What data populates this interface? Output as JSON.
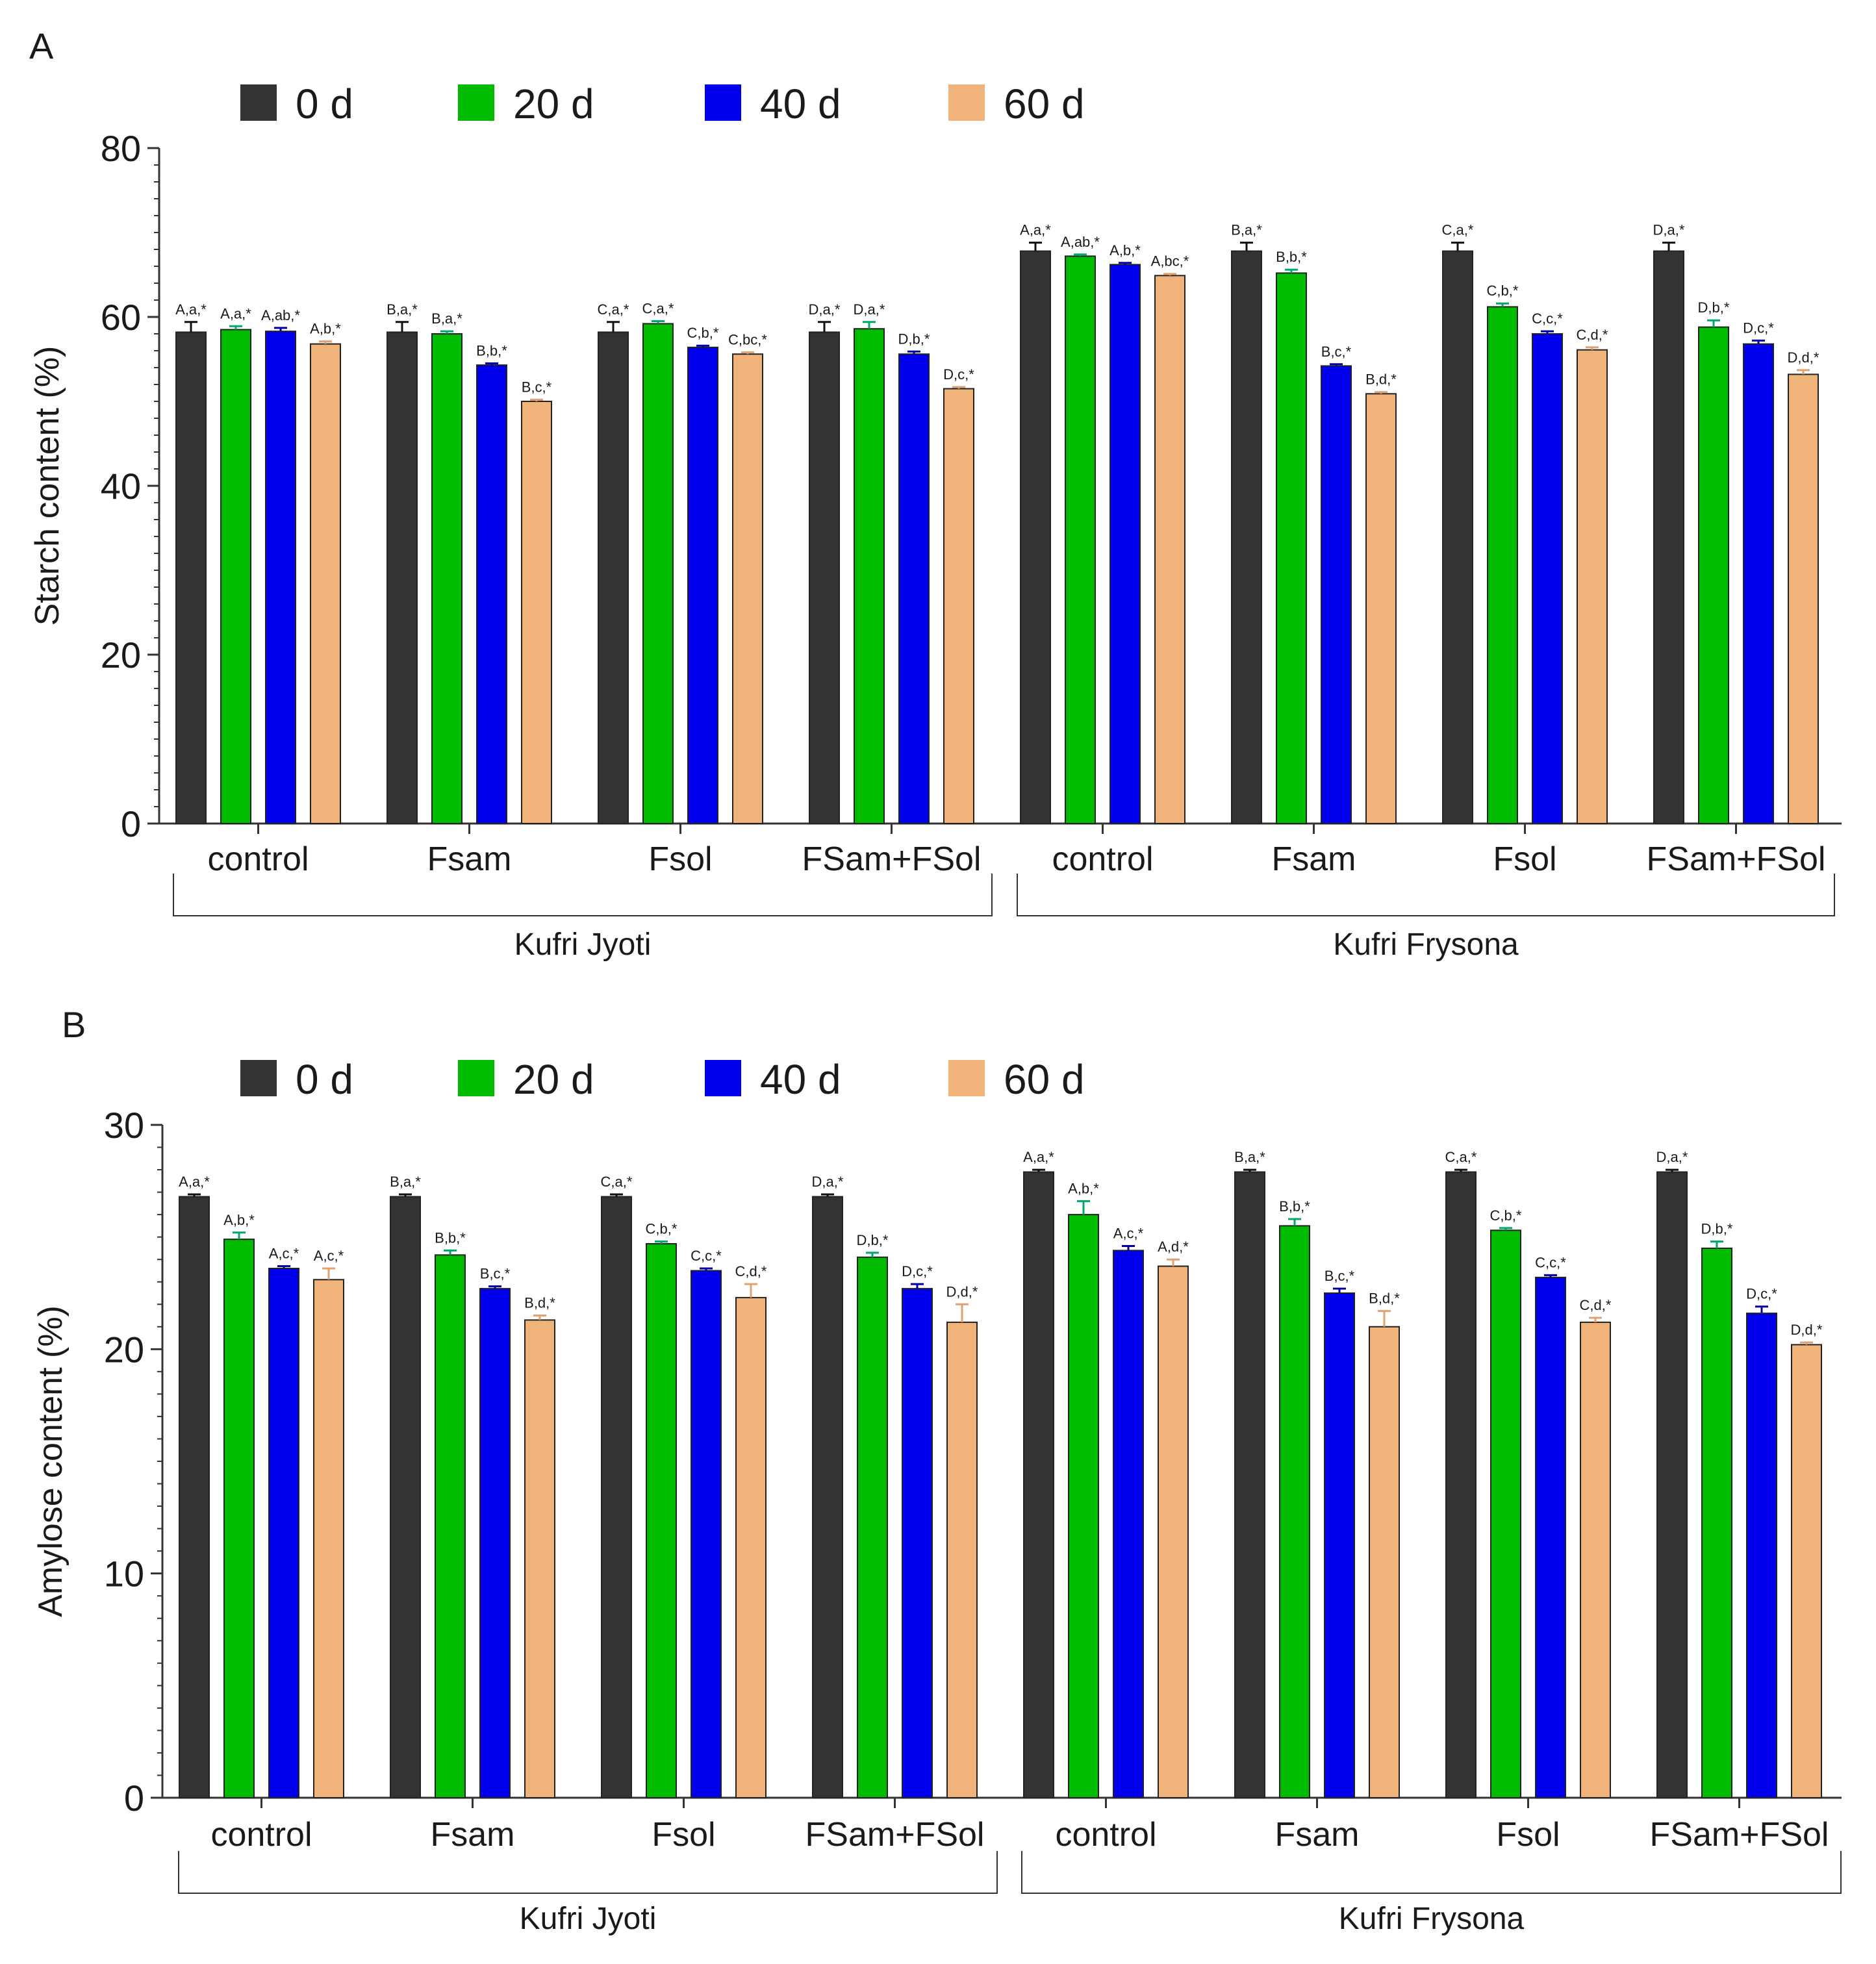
{
  "colors": {
    "0 d": "#333333",
    "20 d": "#00bb00",
    "40 d": "#0000ee",
    "60 d": "#f0b47a",
    "axis": "#333333"
  },
  "chart_data": [
    {
      "panel": "A",
      "type": "bar",
      "ylabel": "Starch content (%)",
      "ylim": [
        0,
        80
      ],
      "yticks": [
        "0",
        "20",
        "40",
        "60",
        "80"
      ],
      "legend": [
        "0 d",
        "20 d",
        "40 d",
        "60 d"
      ],
      "legend_position": "top",
      "groups": [
        {
          "name": "Kufri Jyoti",
          "categories": [
            "control",
            "Fsam",
            "Fsol",
            "FSam+FSol"
          ]
        },
        {
          "name": "Kufri Frysona",
          "categories": [
            "control",
            "Fsam",
            "Fsol",
            "FSam+FSol"
          ]
        }
      ],
      "series": [
        {
          "name": "0 d",
          "values": [
            58.2,
            58.2,
            58.2,
            58.2,
            67.8,
            67.8,
            67.8,
            67.8
          ],
          "errors": [
            1.2,
            1.2,
            1.2,
            1.2,
            1.0,
            1.0,
            1.0,
            1.0
          ],
          "labels": [
            "A,a,*",
            "B,a,*",
            "C,a,*",
            "D,a,*",
            "A,a,*",
            "B,a,*",
            "C,a,*",
            "D,a,*"
          ]
        },
        {
          "name": "20 d",
          "values": [
            58.5,
            58.0,
            59.2,
            58.6,
            67.2,
            65.2,
            61.2,
            58.8
          ],
          "errors": [
            0.4,
            0.3,
            0.3,
            0.8,
            0.2,
            0.4,
            0.4,
            0.8
          ],
          "labels": [
            "A,a,*",
            "B,a,*",
            "C,a,*",
            "D,a,*",
            "A,ab,*",
            "B,b,*",
            "C,b,*",
            "D,b,*"
          ]
        },
        {
          "name": "40 d",
          "values": [
            58.3,
            54.3,
            56.4,
            55.6,
            66.2,
            54.2,
            58.0,
            56.8
          ],
          "errors": [
            0.4,
            0.2,
            0.2,
            0.3,
            0.2,
            0.2,
            0.3,
            0.4
          ],
          "labels": [
            "A,ab,*",
            "B,b,*",
            "C,b,*",
            "D,b,*",
            "A,b,*",
            "B,c,*",
            "C,c,*",
            "D,c,*"
          ]
        },
        {
          "name": "60 d",
          "values": [
            56.8,
            50.0,
            55.6,
            51.5,
            64.9,
            50.9,
            56.1,
            53.2
          ],
          "errors": [
            0.3,
            0.2,
            0.2,
            0.2,
            0.2,
            0.2,
            0.3,
            0.5
          ],
          "labels": [
            "A,b,*",
            "B,c,*",
            "C,bc,*",
            "D,c,*",
            "A,bc,*",
            "B,d,*",
            "C,d,*",
            "D,d,*"
          ]
        }
      ]
    },
    {
      "panel": "B",
      "type": "bar",
      "ylabel": "Amylose content (%)",
      "ylim": [
        0,
        30
      ],
      "yticks": [
        "0",
        "10",
        "20",
        "30"
      ],
      "legend": [
        "0 d",
        "20 d",
        "40 d",
        "60 d"
      ],
      "legend_position": "top",
      "groups": [
        {
          "name": "Kufri Jyoti",
          "categories": [
            "control",
            "Fsam",
            "Fsol",
            "FSam+FSol"
          ]
        },
        {
          "name": "Kufri Frysona",
          "categories": [
            "control",
            "Fsam",
            "Fsol",
            "FSam+FSol"
          ]
        }
      ],
      "series": [
        {
          "name": "0 d",
          "values": [
            26.8,
            26.8,
            26.8,
            26.8,
            27.9,
            27.9,
            27.9,
            27.9
          ],
          "errors": [
            0.1,
            0.1,
            0.1,
            0.1,
            0.1,
            0.1,
            0.1,
            0.1
          ],
          "labels": [
            "A,a,*",
            "B,a,*",
            "C,a,*",
            "D,a,*",
            "A,a,*",
            "B,a,*",
            "C,a,*",
            "D,a,*"
          ]
        },
        {
          "name": "20 d",
          "values": [
            24.9,
            24.2,
            24.7,
            24.1,
            26.0,
            25.5,
            25.3,
            24.5
          ],
          "errors": [
            0.3,
            0.2,
            0.1,
            0.2,
            0.6,
            0.3,
            0.1,
            0.3
          ],
          "labels": [
            "A,b,*",
            "B,b,*",
            "C,b,*",
            "D,b,*",
            "A,b,*",
            "B,b,*",
            "C,b,*",
            "D,b,*"
          ]
        },
        {
          "name": "40 d",
          "values": [
            23.6,
            22.7,
            23.5,
            22.7,
            24.4,
            22.5,
            23.2,
            21.6
          ],
          "errors": [
            0.1,
            0.1,
            0.1,
            0.2,
            0.2,
            0.2,
            0.1,
            0.3
          ],
          "labels": [
            "A,c,*",
            "B,c,*",
            "C,c,*",
            "D,c,*",
            "A,c,*",
            "B,c,*",
            "C,c,*",
            "D,c,*"
          ]
        },
        {
          "name": "60 d",
          "values": [
            23.1,
            21.3,
            22.3,
            21.2,
            23.7,
            21.0,
            21.2,
            20.2
          ],
          "errors": [
            0.5,
            0.2,
            0.6,
            0.8,
            0.3,
            0.7,
            0.2,
            0.1
          ],
          "labels": [
            "A,c,*",
            "B,d,*",
            "C,d,*",
            "D,d,*",
            "A,d,*",
            "B,d,*",
            "C,d,*",
            "D,d,*"
          ]
        }
      ]
    }
  ]
}
